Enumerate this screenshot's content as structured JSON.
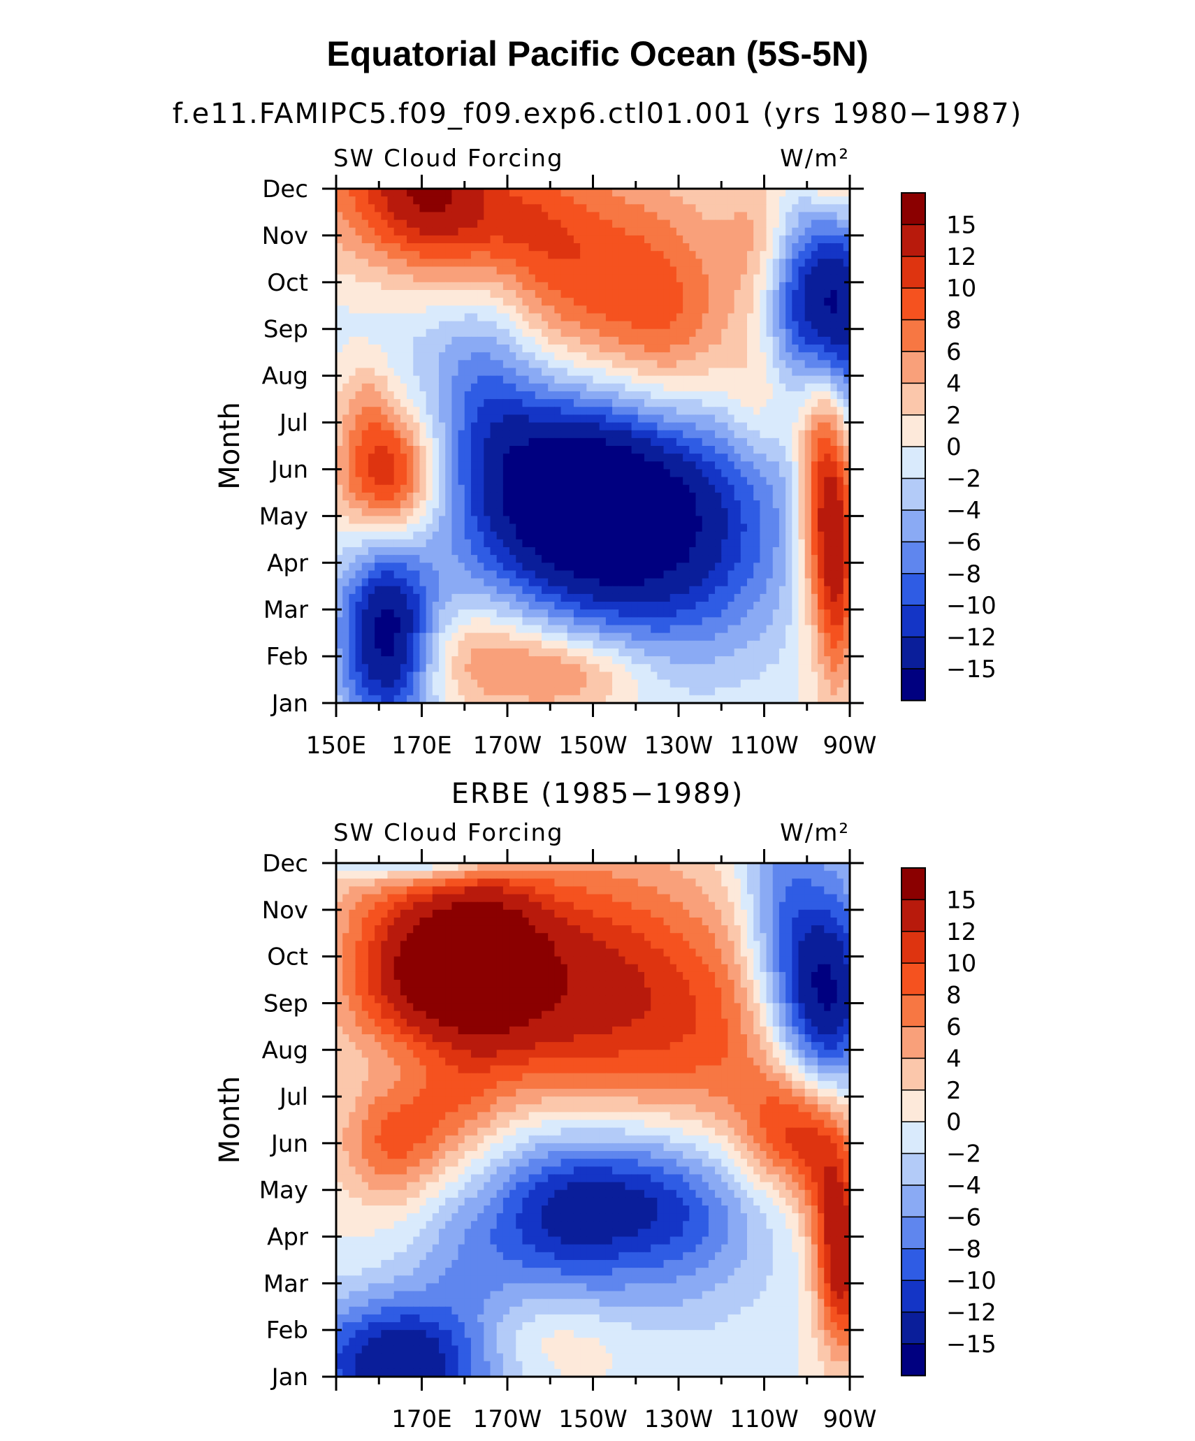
{
  "figure": {
    "title": "Equatorial Pacific Ocean (5S-5N)",
    "colorbar_labels": [
      "15",
      "12",
      "10",
      "8",
      "6",
      "4",
      "2",
      "0",
      "−2",
      "−4",
      "−6",
      "−8",
      "−10",
      "−12",
      "−15"
    ],
    "colors": [
      "#8b0000",
      "#b81a0c",
      "#de3410",
      "#f5521f",
      "#f77743",
      "#f9a07a",
      "#fbc7ab",
      "#fde9da",
      "#d9eafc",
      "#b3cbf8",
      "#8aaaf4",
      "#5f86ee",
      "#2f5ce4",
      "#1435c6",
      "#0a1e9a",
      "#000080"
    ]
  },
  "chart_data": [
    {
      "type": "heatmap",
      "title": "f.e11.FAMIPC5.f09_f09.exp6.ctl01.001 (yrs 1980−1987)",
      "left_label": "SW Cloud Forcing",
      "right_label": "W/m²",
      "xlabel": "",
      "ylabel": "Month",
      "x_ticklabels": [
        "150E",
        "170E",
        "170W",
        "150W",
        "130W",
        "110W",
        "90W"
      ],
      "y_ticklabels": [
        "Dec",
        "Nov",
        "Oct",
        "Sep",
        "Aug",
        "Jul",
        "Jun",
        "May",
        "Apr",
        "Mar",
        "Feb",
        "Jan"
      ],
      "xlim": [
        150,
        270
      ],
      "levels": [
        -15,
        -12,
        -10,
        -8,
        -6,
        -4,
        -2,
        0,
        2,
        4,
        6,
        8,
        10,
        12,
        15
      ],
      "blobs": [
        {
          "lon": 157,
          "month": 11.5,
          "amp": 6,
          "sx": 12,
          "sy": 1.4
        },
        {
          "lon": 180,
          "month": 10.4,
          "amp": 11,
          "sx": 16,
          "sy": 1.2
        },
        {
          "lon": 172,
          "month": 11.2,
          "amp": 5,
          "sx": 8,
          "sy": 0.8
        },
        {
          "lon": 210,
          "month": 8.6,
          "amp": 10,
          "sx": 22,
          "sy": 2.0
        },
        {
          "lon": 228,
          "month": 7.8,
          "amp": 3,
          "sx": 10,
          "sy": 1.5
        },
        {
          "lon": 162,
          "month": 4.9,
          "amp": 13,
          "sx": 8,
          "sy": 1.0
        },
        {
          "lon": 157,
          "month": 6.6,
          "amp": 4,
          "sx": 5,
          "sy": 0.8
        },
        {
          "lon": 185,
          "month": 1.0,
          "amp": 6,
          "sx": 14,
          "sy": 0.8
        },
        {
          "lon": 206,
          "month": 0.6,
          "amp": 6,
          "sx": 12,
          "sy": 0.6
        },
        {
          "lon": 265,
          "month": 4.4,
          "amp": 17,
          "sx": 5,
          "sy": 1.9
        },
        {
          "lon": 263,
          "month": 6.4,
          "amp": 6,
          "sx": 5,
          "sy": 1.0
        },
        {
          "lon": 250,
          "month": 6.4,
          "amp": 4,
          "sx": 6,
          "sy": 1.0
        },
        {
          "lon": 267,
          "month": 11.3,
          "amp": 8,
          "sx": 5,
          "sy": 0.7
        },
        {
          "lon": 267,
          "month": 2.0,
          "amp": 6,
          "sx": 3,
          "sy": 1.5
        },
        {
          "lon": 250,
          "month": 10.0,
          "amp": 4,
          "sx": 6,
          "sy": 1.0
        },
        {
          "lon": 162,
          "month": 1.4,
          "amp": -17,
          "sx": 8,
          "sy": 1.4
        },
        {
          "lon": 218,
          "month": 4.3,
          "amp": -17,
          "sx": 24,
          "sy": 1.7
        },
        {
          "lon": 202,
          "month": 5.0,
          "amp": -8,
          "sx": 15,
          "sy": 2.1
        },
        {
          "lon": 185,
          "month": 7.5,
          "amp": -7,
          "sx": 9,
          "sy": 2.2
        },
        {
          "lon": 165,
          "month": 7.9,
          "amp": -3,
          "sx": 12,
          "sy": 1.5
        },
        {
          "lon": 266,
          "month": 8.0,
          "amp": -18,
          "sx": 8,
          "sy": 1.9
        },
        {
          "lon": 255,
          "month": 9.0,
          "amp": -4,
          "sx": 5,
          "sy": 1.2
        },
        {
          "lon": 232,
          "month": 2.2,
          "amp": -4,
          "sx": 18,
          "sy": 1.4
        },
        {
          "lon": 190,
          "month": 11.8,
          "amp": -3,
          "sx": 10,
          "sy": 0.3
        }
      ]
    },
    {
      "type": "heatmap",
      "title": "ERBE (1985−1989)",
      "left_label": "SW Cloud Forcing",
      "right_label": "W/m²",
      "xlabel": "",
      "ylabel": "Month",
      "x_ticklabels": [
        "170E",
        "170W",
        "150W",
        "130W",
        "110W",
        "90W"
      ],
      "y_ticklabels": [
        "Dec",
        "Nov",
        "Oct",
        "Sep",
        "Aug",
        "Jul",
        "Jun",
        "May",
        "Apr",
        "Mar",
        "Feb",
        "Jan"
      ],
      "xlim": [
        150,
        270
      ],
      "levels": [
        -15,
        -12,
        -10,
        -8,
        -6,
        -4,
        -2,
        0,
        2,
        4,
        6,
        8,
        10,
        12,
        15
      ],
      "blobs": [
        {
          "lon": 170,
          "month": 8.6,
          "amp": 13,
          "sx": 14,
          "sy": 1.2
        },
        {
          "lon": 185,
          "month": 9.2,
          "amp": 7,
          "sx": 10,
          "sy": 1.6
        },
        {
          "lon": 200,
          "month": 8.5,
          "amp": 9,
          "sx": 20,
          "sy": 1.8
        },
        {
          "lon": 220,
          "month": 8.0,
          "amp": 6,
          "sx": 22,
          "sy": 2.2
        },
        {
          "lon": 240,
          "month": 7.0,
          "amp": 4,
          "sx": 14,
          "sy": 1.8
        },
        {
          "lon": 165,
          "month": 10.3,
          "amp": 3,
          "sx": 14,
          "sy": 0.8
        },
        {
          "lon": 163,
          "month": 5.0,
          "amp": 8,
          "sx": 9,
          "sy": 0.9
        },
        {
          "lon": 178,
          "month": 5.8,
          "amp": 4,
          "sx": 8,
          "sy": 0.8
        },
        {
          "lon": 258,
          "month": 5.3,
          "amp": 11,
          "sx": 9,
          "sy": 1.0
        },
        {
          "lon": 268,
          "month": 2.3,
          "amp": 13,
          "sx": 4,
          "sy": 1.3
        },
        {
          "lon": 265,
          "month": 4.0,
          "amp": 6,
          "sx": 5,
          "sy": 1.2
        },
        {
          "lon": 200,
          "month": 0.8,
          "amp": 3,
          "sx": 14,
          "sy": 0.6
        },
        {
          "lon": 220,
          "month": 2.5,
          "amp": 3,
          "sx": 14,
          "sy": 0.8
        },
        {
          "lon": 172,
          "month": 11.6,
          "amp": -16,
          "sx": 14,
          "sy": 0.55
        },
        {
          "lon": 165,
          "month": 0.3,
          "amp": -15,
          "sx": 16,
          "sy": 1.0
        },
        {
          "lon": 222,
          "month": 3.4,
          "amp": -14,
          "sx": 18,
          "sy": 1.4
        },
        {
          "lon": 200,
          "month": 3.6,
          "amp": -7,
          "sx": 12,
          "sy": 1.2
        },
        {
          "lon": 180,
          "month": 2.6,
          "amp": -4,
          "sx": 10,
          "sy": 1.0
        },
        {
          "lon": 264,
          "month": 8.2,
          "amp": -17,
          "sx": 8,
          "sy": 1.7
        },
        {
          "lon": 252,
          "month": 9.6,
          "amp": -5,
          "sx": 6,
          "sy": 1.3
        },
        {
          "lon": 255,
          "month": 11.2,
          "amp": -3,
          "sx": 8,
          "sy": 0.8
        },
        {
          "lon": 170,
          "month": 6.8,
          "amp": -1,
          "sx": 8,
          "sy": 0.5
        }
      ]
    }
  ]
}
